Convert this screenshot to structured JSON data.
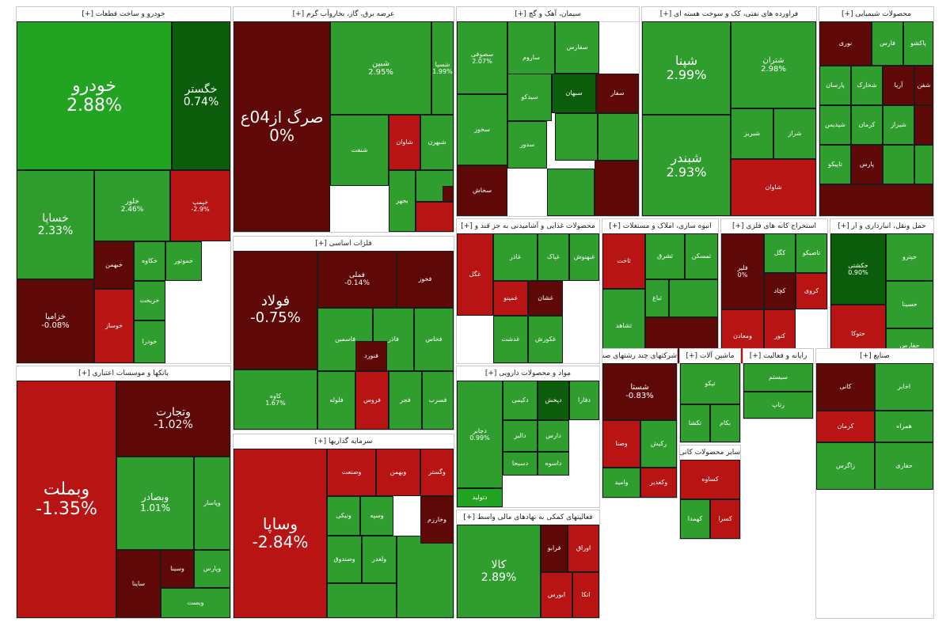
{
  "colors": {
    "strong_green": "#22a322",
    "green": "#2f9e2f",
    "dark_green": "#0b5c0b",
    "red": "#b81414",
    "dark_red": "#5e0808",
    "neutral": "#4a0606"
  },
  "chart_data": {
    "type": "treemap",
    "sectors": [
      {
        "key": "auto",
        "name": "خودرو و ساخت قطعات [+]",
        "tiles": [
          {
            "symbol": "خودرو",
            "change": "2.88%"
          },
          {
            "symbol": "خگستر",
            "change": "0.74%"
          },
          {
            "symbol": "خساپا",
            "change": "2.33%"
          },
          {
            "symbol": "خلور",
            "change": "2.46%"
          },
          {
            "symbol": "خپمپ",
            "change": "-2.9%"
          },
          {
            "symbol": "خزامیا",
            "change": "-0.08%"
          },
          {
            "symbol": "خبهمن",
            "change": ""
          },
          {
            "symbol": "خکاوه",
            "change": ""
          },
          {
            "symbol": "خریخت",
            "change": ""
          },
          {
            "symbol": "خموتور",
            "change": ""
          },
          {
            "symbol": "خودرا",
            "change": ""
          },
          {
            "symbol": "خوساز",
            "change": ""
          }
        ]
      },
      {
        "key": "refinery",
        "name": "عرضه برق، گاز، بخاروآب گرم [+]",
        "tiles": [
          {
            "symbol": "صرگ از04ع",
            "change": "0%"
          },
          {
            "symbol": "شبین",
            "change": "2.95%"
          },
          {
            "symbol": "شسپا",
            "change": "1.99%"
          },
          {
            "symbol": "شنفت",
            "change": ""
          },
          {
            "symbol": "شاوان",
            "change": ""
          },
          {
            "symbol": "شبهرن",
            "change": ""
          },
          {
            "symbol": "بجهر",
            "change": ""
          }
        ]
      },
      {
        "key": "cement",
        "name": "سیمان، آهک و گچ [+]",
        "tiles": [
          {
            "symbol": "سصوفی",
            "change": "2.07%"
          },
          {
            "symbol": "ساروم",
            "change": ""
          },
          {
            "symbol": "سفارس",
            "change": ""
          },
          {
            "symbol": "سخوز",
            "change": ""
          },
          {
            "symbol": "سیدکو",
            "change": ""
          },
          {
            "symbol": "سبهان",
            "change": ""
          },
          {
            "symbol": "سفار",
            "change": ""
          },
          {
            "symbol": "سخاش",
            "change": ""
          },
          {
            "symbol": "سدور",
            "change": ""
          }
        ]
      },
      {
        "key": "petro_products",
        "name": "فراورده های نفتی، کک و سوخت هسته ای [+]",
        "tiles": [
          {
            "symbol": "شپنا",
            "change": "2.99%"
          },
          {
            "symbol": "شتران",
            "change": "2.98%"
          },
          {
            "symbol": "شبندر",
            "change": "2.93%"
          },
          {
            "symbol": "شبریز",
            "change": ""
          },
          {
            "symbol": "شراز",
            "change": ""
          },
          {
            "symbol": "شاوان",
            "change": ""
          }
        ]
      },
      {
        "key": "chemical",
        "name": "محصولات شیمیایی [+]",
        "tiles": [
          {
            "symbol": "نوری",
            "change": ""
          },
          {
            "symbol": "فارس",
            "change": ""
          },
          {
            "symbol": "پاکشو",
            "change": ""
          },
          {
            "symbol": "پارسان",
            "change": ""
          },
          {
            "symbol": "شخارک",
            "change": ""
          },
          {
            "symbol": "آریا",
            "change": ""
          },
          {
            "symbol": "شفن",
            "change": ""
          },
          {
            "symbol": "شپدیس",
            "change": ""
          },
          {
            "symbol": "کرمان",
            "change": ""
          },
          {
            "symbol": "شیراز",
            "change": ""
          },
          {
            "symbol": "تاپیکو",
            "change": ""
          },
          {
            "symbol": "پارس",
            "change": ""
          }
        ]
      },
      {
        "key": "food",
        "name": "محصولات غذایی و آشامیدنی به جز قند و [+]",
        "tiles": [
          {
            "symbol": "غگل",
            "change": ""
          },
          {
            "symbol": "غاذر",
            "change": ""
          },
          {
            "symbol": "غپاک",
            "change": ""
          },
          {
            "symbol": "غبهنوش",
            "change": ""
          },
          {
            "symbol": "غمینو",
            "change": ""
          },
          {
            "symbol": "غشان",
            "change": ""
          },
          {
            "symbol": "غدشت",
            "change": ""
          },
          {
            "symbol": "غکورش",
            "change": ""
          }
        ]
      },
      {
        "key": "realestate",
        "name": "انبوه سازی، املاک و مستغلات [+]",
        "tiles": [
          {
            "symbol": "ثشرق",
            "change": ""
          },
          {
            "symbol": "ثمسکن",
            "change": ""
          },
          {
            "symbol": "ثاخت",
            "change": ""
          },
          {
            "symbol": "ثشاهد",
            "change": ""
          },
          {
            "symbol": "ثباغ",
            "change": ""
          }
        ]
      },
      {
        "key": "mining",
        "name": "استخراج کانه های فلزی [+]",
        "tiles": [
          {
            "symbol": "کگل",
            "change": ""
          },
          {
            "symbol": "کچاد",
            "change": ""
          },
          {
            "symbol": "تاصیکو",
            "change": ""
          },
          {
            "symbol": "کروی",
            "change": ""
          },
          {
            "symbol": "کنور",
            "change": ""
          },
          {
            "symbol": "ومعادن",
            "change": ""
          },
          {
            "symbol": "فلیر",
            "change": "0%"
          }
        ]
      },
      {
        "key": "transport",
        "name": "حمل ونقل، انبارداری و ار [+]",
        "tiles": [
          {
            "symbol": "حکشتی",
            "change": "0.90%"
          },
          {
            "symbol": "حپترو",
            "change": ""
          },
          {
            "symbol": "حسینا",
            "change": ""
          },
          {
            "symbol": "حتوکا",
            "change": ""
          },
          {
            "symbol": "حفارس",
            "change": ""
          }
        ]
      },
      {
        "key": "banks",
        "name": "بانکها و موسسات اعتباری [+]",
        "tiles": [
          {
            "symbol": "وبملت",
            "change": "-1.35%"
          },
          {
            "symbol": "وتجارت",
            "change": "-1.02%"
          },
          {
            "symbol": "وبصادر",
            "change": "1.01%"
          },
          {
            "symbol": "وپاسار",
            "change": ""
          },
          {
            "symbol": "وپارس",
            "change": ""
          },
          {
            "symbol": "وسینا",
            "change": ""
          },
          {
            "symbol": "وبست",
            "change": ""
          },
          {
            "symbol": "ساینا",
            "change": ""
          }
        ]
      },
      {
        "key": "basic_metals",
        "name": "فلزات اساسی [+]",
        "tiles": [
          {
            "symbol": "فولاد",
            "change": "-0.75%"
          },
          {
            "symbol": "فملی",
            "change": "-0.14%"
          },
          {
            "symbol": "فخوز",
            "change": ""
          },
          {
            "symbol": "کاوه",
            "change": "1.67%"
          },
          {
            "symbol": "فاسمین",
            "change": ""
          },
          {
            "symbol": "فاذر",
            "change": ""
          },
          {
            "symbol": "فخاس",
            "change": ""
          },
          {
            "symbol": "فلوله",
            "change": ""
          },
          {
            "symbol": "فروس",
            "change": ""
          },
          {
            "symbol": "فجر",
            "change": ""
          },
          {
            "symbol": "فسرب",
            "change": ""
          },
          {
            "symbol": "فنورد",
            "change": ""
          }
        ]
      },
      {
        "key": "investment",
        "name": "سرمایه گذاریها [+]",
        "tiles": [
          {
            "symbol": "وساپا",
            "change": "-2.84%"
          },
          {
            "symbol": "وگستر",
            "change": ""
          },
          {
            "symbol": "وصنعت",
            "change": ""
          },
          {
            "symbol": "وبهمن",
            "change": ""
          },
          {
            "symbol": "وخارزم",
            "change": ""
          },
          {
            "symbol": "ونیکی",
            "change": ""
          },
          {
            "symbol": "وسپه",
            "change": ""
          },
          {
            "symbol": "وصندوق",
            "change": ""
          },
          {
            "symbol": "ولغدر",
            "change": ""
          }
        ]
      },
      {
        "key": "materials",
        "name": "مواد و محصولات دارویی [+]",
        "tiles": [
          {
            "symbol": "دجابر",
            "change": "0.99%"
          },
          {
            "symbol": "دکیمی",
            "change": ""
          },
          {
            "symbol": "دپخش",
            "change": ""
          },
          {
            "symbol": "دفارا",
            "change": ""
          },
          {
            "symbol": "دالبر",
            "change": ""
          },
          {
            "symbol": "دارس",
            "change": ""
          },
          {
            "symbol": "دسبحا",
            "change": ""
          },
          {
            "symbol": "داسوه",
            "change": ""
          },
          {
            "symbol": "دتولید",
            "change": ""
          }
        ]
      },
      {
        "key": "fin_aux",
        "name": "فعالیتهای کمکی به نهادهای مالی واسط [+]",
        "tiles": [
          {
            "symbol": "کالا",
            "change": "2.89%"
          },
          {
            "symbol": "فرابو",
            "change": ""
          },
          {
            "symbol": "اوراق",
            "change": ""
          },
          {
            "symbol": "ابورس",
            "change": ""
          },
          {
            "symbol": "اتکا",
            "change": ""
          }
        ]
      },
      {
        "key": "agri",
        "name": "شرکتهای چند رشتهای صنعتی [+]",
        "tiles": [
          {
            "symbol": "شستا",
            "change": "-0.83%"
          },
          {
            "symbol": "وصنا",
            "change": ""
          },
          {
            "symbol": "رکیش",
            "change": ""
          },
          {
            "symbol": "وامید",
            "change": ""
          },
          {
            "symbol": "وکغدیر",
            "change": ""
          }
        ]
      },
      {
        "key": "telecom",
        "name": "ماشین آلات [+]",
        "tiles": [
          {
            "symbol": "تپکو",
            "change": ""
          },
          {
            "symbol": "تکشا",
            "change": ""
          },
          {
            "symbol": "بکام",
            "change": ""
          }
        ]
      },
      {
        "key": "software",
        "name": "رایانه و فعالیت [+]",
        "tiles": [
          {
            "symbol": "سیستم",
            "change": ""
          },
          {
            "symbol": "رتاپ",
            "change": ""
          }
        ]
      },
      {
        "key": "other",
        "name": "سایر محصولات کانی [+]",
        "tiles": [
          {
            "symbol": "کساوه",
            "change": ""
          },
          {
            "symbol": "کهمدا",
            "change": ""
          },
          {
            "symbol": "کسرا",
            "change": ""
          }
        ]
      },
      {
        "key": "misc",
        "name": "صنایع [+]",
        "tiles": [
          {
            "symbol": "کانی",
            "change": ""
          },
          {
            "symbol": "اخابر",
            "change": ""
          },
          {
            "symbol": "همراه",
            "change": ""
          },
          {
            "symbol": "کرمان",
            "change": ""
          },
          {
            "symbol": "زاگرس",
            "change": ""
          },
          {
            "symbol": "حفاری",
            "change": ""
          }
        ]
      }
    ]
  }
}
